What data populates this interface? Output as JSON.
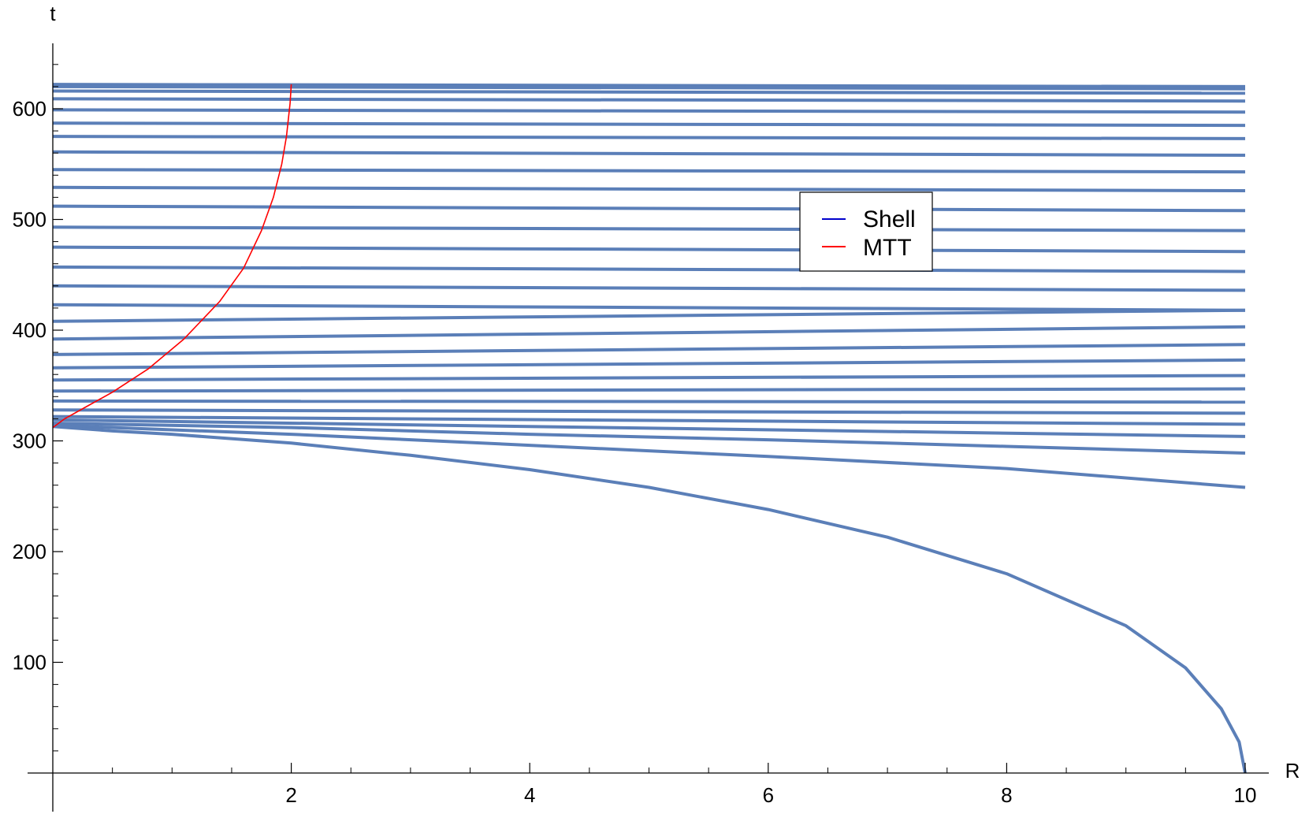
{
  "chart_data": {
    "type": "line",
    "xlabel": "R",
    "ylabel": "t",
    "xlim": [
      0,
      10.2
    ],
    "ylim": [
      0,
      650
    ],
    "x_ticks": [
      2,
      4,
      6,
      8,
      10
    ],
    "y_ticks": [
      100,
      200,
      300,
      400,
      500,
      600
    ],
    "legend": {
      "position": "upper-right",
      "entries": [
        {
          "label": "Shell",
          "color": "#0000cc"
        },
        {
          "label": "MTT",
          "color": "#ff0000"
        }
      ]
    },
    "shell_color": "#5b7fb8",
    "mtt_color": "#ff0000",
    "series": [
      {
        "kind": "shell",
        "x": [
          0,
          0.5,
          1,
          2,
          3,
          4,
          5,
          6,
          7,
          8,
          9,
          9.5,
          9.8,
          9.95,
          10
        ],
        "y": [
          313,
          309,
          306,
          298,
          287,
          274,
          258,
          238,
          213,
          180,
          133,
          95,
          58,
          28,
          0
        ]
      },
      {
        "kind": "shell",
        "x": [
          0,
          2,
          4,
          6,
          8,
          10
        ],
        "y": [
          314,
          306,
          296,
          286,
          275,
          258
        ]
      },
      {
        "kind": "shell",
        "x": [
          0,
          2,
          4,
          6,
          8,
          10
        ],
        "y": [
          316,
          312,
          306,
          301,
          295,
          289
        ]
      },
      {
        "kind": "shell",
        "x": [
          0,
          10
        ],
        "y": [
          319,
          304
        ]
      },
      {
        "kind": "shell",
        "x": [
          0,
          10
        ],
        "y": [
          322,
          315
        ]
      },
      {
        "kind": "shell",
        "x": [
          0,
          10
        ],
        "y": [
          328,
          325
        ]
      },
      {
        "kind": "shell",
        "x": [
          0,
          10
        ],
        "y": [
          336,
          335
        ]
      },
      {
        "kind": "shell",
        "x": [
          0,
          10
        ],
        "y": [
          345,
          347
        ]
      },
      {
        "kind": "shell",
        "x": [
          0,
          10
        ],
        "y": [
          355,
          359
        ]
      },
      {
        "kind": "shell",
        "x": [
          0,
          10
        ],
        "y": [
          366,
          373
        ]
      },
      {
        "kind": "shell",
        "x": [
          0,
          10
        ],
        "y": [
          378,
          387
        ]
      },
      {
        "kind": "shell",
        "x": [
          0,
          10
        ],
        "y": [
          392,
          403
        ]
      },
      {
        "kind": "shell",
        "x": [
          0,
          10
        ],
        "y": [
          408,
          418
        ]
      },
      {
        "kind": "shell",
        "x": [
          0,
          10
        ],
        "y": [
          423,
          418
        ]
      },
      {
        "kind": "shell",
        "x": [
          0,
          10
        ],
        "y": [
          440,
          436
        ]
      },
      {
        "kind": "shell",
        "x": [
          0,
          10
        ],
        "y": [
          457,
          453
        ]
      },
      {
        "kind": "shell",
        "x": [
          0,
          10
        ],
        "y": [
          475,
          471
        ]
      },
      {
        "kind": "shell",
        "x": [
          0,
          10
        ],
        "y": [
          493,
          490
        ]
      },
      {
        "kind": "shell",
        "x": [
          0,
          10
        ],
        "y": [
          512,
          508
        ]
      },
      {
        "kind": "shell",
        "x": [
          0,
          10
        ],
        "y": [
          529,
          526
        ]
      },
      {
        "kind": "shell",
        "x": [
          0,
          10
        ],
        "y": [
          545,
          543
        ]
      },
      {
        "kind": "shell",
        "x": [
          0,
          10
        ],
        "y": [
          561,
          558
        ]
      },
      {
        "kind": "shell",
        "x": [
          0,
          10
        ],
        "y": [
          575,
          573
        ]
      },
      {
        "kind": "shell",
        "x": [
          0,
          10
        ],
        "y": [
          587,
          585
        ]
      },
      {
        "kind": "shell",
        "x": [
          0,
          10
        ],
        "y": [
          599,
          597
        ]
      },
      {
        "kind": "shell",
        "x": [
          0,
          10
        ],
        "y": [
          609,
          607
        ]
      },
      {
        "kind": "shell",
        "x": [
          0,
          10
        ],
        "y": [
          616,
          614
        ]
      },
      {
        "kind": "shell",
        "x": [
          0,
          10
        ],
        "y": [
          620,
          618
        ]
      },
      {
        "kind": "shell",
        "x": [
          0,
          10
        ],
        "y": [
          622,
          620
        ]
      },
      {
        "kind": "mtt",
        "x": [
          0,
          0.1,
          0.3,
          0.5,
          0.8,
          1.1,
          1.4,
          1.6,
          1.75,
          1.85,
          1.92,
          1.96,
          1.99,
          2.0
        ],
        "y": [
          312,
          320,
          332,
          344,
          365,
          392,
          426,
          456,
          490,
          520,
          550,
          575,
          605,
          622
        ]
      }
    ]
  }
}
